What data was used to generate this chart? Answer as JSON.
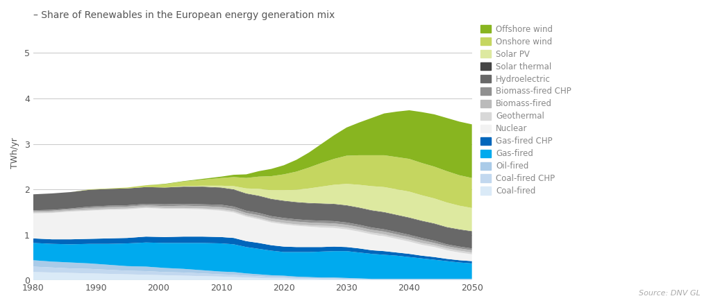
{
  "title": "– Share of Renewables in the European energy generation mix",
  "ylabel": "TWh/yr",
  "source": "Source: DNV GL",
  "xlim": [
    1980,
    2050
  ],
  "ylim": [
    0,
    5.6
  ],
  "yticks": [
    0,
    1,
    2,
    3,
    4,
    5
  ],
  "xticks": [
    1980,
    1990,
    2000,
    2010,
    2020,
    2030,
    2040,
    2050
  ],
  "years": [
    1980,
    1983,
    1986,
    1989,
    1992,
    1995,
    1998,
    2001,
    2004,
    2007,
    2010,
    2012,
    2014,
    2016,
    2018,
    2020,
    2022,
    2024,
    2026,
    2028,
    2030,
    2032,
    2034,
    2036,
    2038,
    2040,
    2042,
    2044,
    2046,
    2048,
    2050
  ],
  "series": {
    "Coal-fired": [
      0.18,
      0.17,
      0.16,
      0.15,
      0.14,
      0.13,
      0.12,
      0.11,
      0.1,
      0.09,
      0.08,
      0.07,
      0.06,
      0.05,
      0.04,
      0.04,
      0.03,
      0.03,
      0.02,
      0.02,
      0.02,
      0.02,
      0.01,
      0.01,
      0.01,
      0.01,
      0.01,
      0.01,
      0.01,
      0.01,
      0.01
    ],
    "Coal-fired CHP": [
      0.12,
      0.11,
      0.1,
      0.1,
      0.09,
      0.08,
      0.08,
      0.07,
      0.07,
      0.06,
      0.05,
      0.05,
      0.04,
      0.04,
      0.03,
      0.03,
      0.02,
      0.02,
      0.02,
      0.02,
      0.01,
      0.01,
      0.01,
      0.01,
      0.01,
      0.01,
      0.01,
      0.01,
      0.01,
      0.01,
      0.01
    ],
    "Oil-fired": [
      0.14,
      0.13,
      0.13,
      0.12,
      0.11,
      0.1,
      0.1,
      0.09,
      0.08,
      0.07,
      0.06,
      0.06,
      0.05,
      0.04,
      0.04,
      0.03,
      0.03,
      0.02,
      0.02,
      0.02,
      0.02,
      0.01,
      0.01,
      0.01,
      0.01,
      0.01,
      0.01,
      0.01,
      0.01,
      0.01,
      0.01
    ],
    "Gas-fired": [
      0.38,
      0.39,
      0.4,
      0.43,
      0.46,
      0.5,
      0.53,
      0.55,
      0.57,
      0.6,
      0.62,
      0.61,
      0.58,
      0.56,
      0.54,
      0.52,
      0.54,
      0.55,
      0.57,
      0.58,
      0.59,
      0.57,
      0.55,
      0.53,
      0.51,
      0.48,
      0.45,
      0.42,
      0.39,
      0.36,
      0.34
    ],
    "Gas-fired CHP": [
      0.1,
      0.1,
      0.11,
      0.11,
      0.12,
      0.12,
      0.13,
      0.13,
      0.14,
      0.14,
      0.14,
      0.14,
      0.13,
      0.13,
      0.12,
      0.12,
      0.11,
      0.11,
      0.1,
      0.1,
      0.09,
      0.09,
      0.08,
      0.08,
      0.07,
      0.07,
      0.06,
      0.06,
      0.05,
      0.05,
      0.05
    ],
    "Nuclear": [
      0.55,
      0.58,
      0.61,
      0.62,
      0.63,
      0.63,
      0.63,
      0.62,
      0.61,
      0.6,
      0.58,
      0.56,
      0.54,
      0.52,
      0.5,
      0.49,
      0.47,
      0.45,
      0.43,
      0.41,
      0.39,
      0.37,
      0.35,
      0.33,
      0.3,
      0.27,
      0.24,
      0.22,
      0.19,
      0.17,
      0.15
    ],
    "Geothermal": [
      0.02,
      0.02,
      0.02,
      0.02,
      0.02,
      0.02,
      0.02,
      0.02,
      0.02,
      0.02,
      0.03,
      0.03,
      0.03,
      0.03,
      0.03,
      0.03,
      0.03,
      0.03,
      0.04,
      0.04,
      0.04,
      0.04,
      0.04,
      0.04,
      0.04,
      0.04,
      0.04,
      0.04,
      0.04,
      0.04,
      0.04
    ],
    "Biomass-fired": [
      0.03,
      0.03,
      0.03,
      0.04,
      0.04,
      0.04,
      0.04,
      0.04,
      0.05,
      0.05,
      0.05,
      0.05,
      0.05,
      0.06,
      0.06,
      0.06,
      0.06,
      0.06,
      0.06,
      0.06,
      0.06,
      0.06,
      0.06,
      0.06,
      0.06,
      0.06,
      0.06,
      0.05,
      0.05,
      0.05,
      0.05
    ],
    "Biomass-fired CHP": [
      0.02,
      0.02,
      0.02,
      0.03,
      0.03,
      0.03,
      0.03,
      0.04,
      0.04,
      0.04,
      0.05,
      0.05,
      0.05,
      0.05,
      0.05,
      0.05,
      0.05,
      0.05,
      0.05,
      0.05,
      0.05,
      0.05,
      0.05,
      0.05,
      0.05,
      0.05,
      0.05,
      0.05,
      0.04,
      0.04,
      0.04
    ],
    "Hydroelectric": [
      0.35,
      0.36,
      0.36,
      0.37,
      0.37,
      0.37,
      0.37,
      0.37,
      0.38,
      0.38,
      0.37,
      0.37,
      0.37,
      0.37,
      0.37,
      0.37,
      0.37,
      0.37,
      0.37,
      0.37,
      0.37,
      0.37,
      0.37,
      0.37,
      0.37,
      0.37,
      0.37,
      0.37,
      0.37,
      0.37,
      0.37
    ],
    "Solar thermal": [
      0.0,
      0.0,
      0.0,
      0.0,
      0.0,
      0.0,
      0.0,
      0.0,
      0.0,
      0.01,
      0.01,
      0.01,
      0.01,
      0.01,
      0.01,
      0.01,
      0.01,
      0.01,
      0.01,
      0.01,
      0.01,
      0.01,
      0.01,
      0.01,
      0.01,
      0.01,
      0.01,
      0.01,
      0.01,
      0.01,
      0.01
    ],
    "Solar PV": [
      0.0,
      0.0,
      0.0,
      0.0,
      0.0,
      0.0,
      0.0,
      0.0,
      0.01,
      0.02,
      0.04,
      0.07,
      0.11,
      0.15,
      0.19,
      0.23,
      0.27,
      0.32,
      0.37,
      0.42,
      0.47,
      0.5,
      0.53,
      0.55,
      0.56,
      0.57,
      0.56,
      0.55,
      0.54,
      0.52,
      0.51
    ],
    "Onshore wind": [
      0.0,
      0.0,
      0.0,
      0.01,
      0.01,
      0.02,
      0.04,
      0.07,
      0.1,
      0.13,
      0.17,
      0.2,
      0.23,
      0.27,
      0.31,
      0.35,
      0.4,
      0.46,
      0.52,
      0.57,
      0.62,
      0.65,
      0.68,
      0.7,
      0.71,
      0.72,
      0.71,
      0.7,
      0.69,
      0.67,
      0.66
    ],
    "Offshore wind": [
      0.0,
      0.0,
      0.0,
      0.0,
      0.0,
      0.0,
      0.0,
      0.01,
      0.01,
      0.02,
      0.03,
      0.05,
      0.08,
      0.12,
      0.16,
      0.2,
      0.26,
      0.33,
      0.42,
      0.52,
      0.62,
      0.72,
      0.82,
      0.92,
      1.0,
      1.07,
      1.12,
      1.15,
      1.17,
      1.18,
      1.18
    ]
  },
  "colors": {
    "Coal-fired": "#daeaf7",
    "Coal-fired CHP": "#c2d8ef",
    "Oil-fired": "#aacbe8",
    "Gas-fired": "#00aaee",
    "Gas-fired CHP": "#0066bb",
    "Nuclear": "#f2f2f2",
    "Geothermal": "#d8d8d8",
    "Biomass-fired": "#bbbbbb",
    "Biomass-fired CHP": "#909090",
    "Hydroelectric": "#686868",
    "Solar thermal": "#454545",
    "Solar PV": "#dde9a0",
    "Onshore wind": "#c5d660",
    "Offshore wind": "#88b520"
  },
  "legend_order": [
    "Offshore wind",
    "Onshore wind",
    "Solar PV",
    "Solar thermal",
    "Hydroelectric",
    "Biomass-fired CHP",
    "Biomass-fired",
    "Geothermal",
    "Nuclear",
    "Gas-fired CHP",
    "Gas-fired",
    "Oil-fired",
    "Coal-fired CHP",
    "Coal-fired"
  ],
  "stack_order": [
    "Coal-fired",
    "Coal-fired CHP",
    "Oil-fired",
    "Gas-fired",
    "Gas-fired CHP",
    "Nuclear",
    "Geothermal",
    "Biomass-fired",
    "Biomass-fired CHP",
    "Hydroelectric",
    "Solar thermal",
    "Solar PV",
    "Onshore wind",
    "Offshore wind"
  ],
  "background_color": "#ffffff",
  "title_color": "#555555",
  "legend_text_color": "#888888",
  "source_color": "#aaaaaa"
}
